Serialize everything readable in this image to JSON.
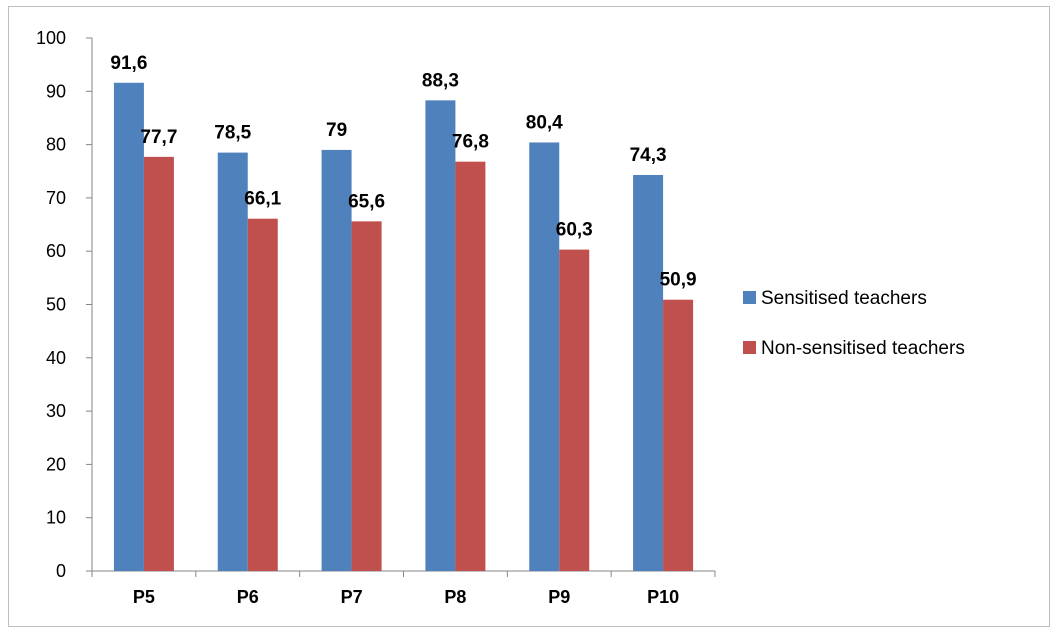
{
  "chart_data": {
    "type": "bar",
    "categories": [
      "P5",
      "P6",
      "P7",
      "P8",
      "P9",
      "P10"
    ],
    "series": [
      {
        "name": "Sensitised teachers",
        "values": [
          91.6,
          78.5,
          79,
          88.3,
          80.4,
          74.3
        ],
        "labels": [
          "91,6",
          "78,5",
          "79",
          "88,3",
          "80,4",
          "74,3"
        ],
        "color": "#4F81BD"
      },
      {
        "name": "Non-sensitised teachers",
        "values": [
          77.7,
          66.1,
          65.6,
          76.8,
          60.3,
          50.9
        ],
        "labels": [
          "77,7",
          "66,1",
          "65,6",
          "76,8",
          "60,3",
          "50,9"
        ],
        "color": "#C0504D"
      }
    ],
    "ylim": [
      0,
      100
    ],
    "yticks": [
      "0",
      "10",
      "20",
      "30",
      "40",
      "50",
      "60",
      "70",
      "80",
      "90",
      "100"
    ],
    "grid": false,
    "legend": "right"
  }
}
